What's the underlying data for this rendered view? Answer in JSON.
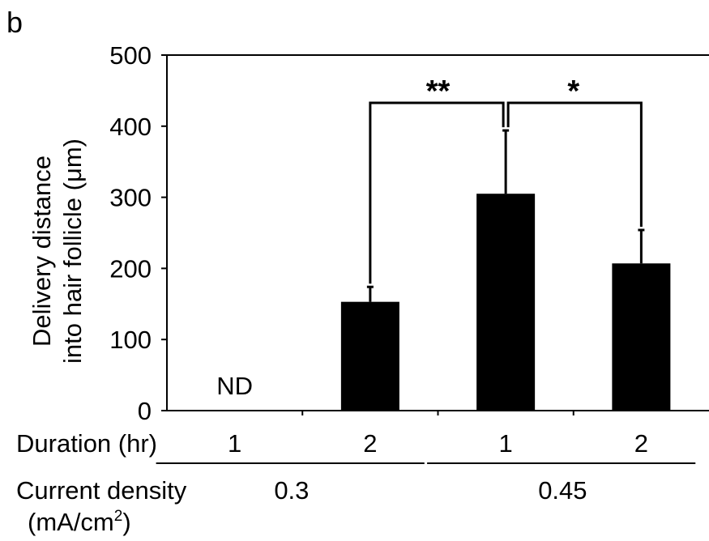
{
  "panel_label": "b",
  "chart_data": {
    "type": "bar",
    "title": "",
    "ylabel_line1": "Delivery distance",
    "ylabel_line2_prefix": "into hair follicle (",
    "ylabel_unit": "μm",
    "ylabel_line2_suffix": ")",
    "ylim": [
      0,
      500
    ],
    "yticks": [
      "0",
      "100",
      "200",
      "300",
      "400",
      "500"
    ],
    "grid": false,
    "colors": {
      "bar": "#000000"
    },
    "bars": [
      {
        "duration": "1",
        "value": 0,
        "error": 0,
        "nd_label": "ND"
      },
      {
        "duration": "2",
        "value": 153,
        "error": 21,
        "nd_label": ""
      },
      {
        "duration": "1",
        "value": 305,
        "error": 89,
        "nd_label": ""
      },
      {
        "duration": "2",
        "value": 207,
        "error": 47,
        "nd_label": ""
      }
    ],
    "row_labels": {
      "duration": "Duration (hr)",
      "current_density_line1": "Current density",
      "current_density_line2_prefix": "(mA/cm",
      "current_density_sup": "2",
      "current_density_line2_suffix": ")"
    },
    "groups": [
      {
        "label": "0.3",
        "bars": [
          0,
          1
        ]
      },
      {
        "label": "0.45",
        "bars": [
          2,
          3
        ]
      }
    ],
    "significance": [
      {
        "from": 1,
        "to": 2,
        "label": "**"
      },
      {
        "from": 3,
        "to": 2,
        "label": "*"
      }
    ]
  }
}
